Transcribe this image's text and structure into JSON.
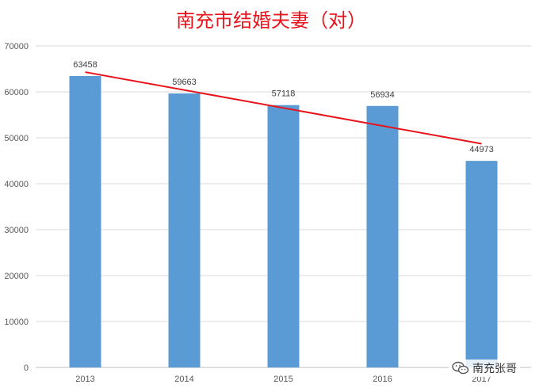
{
  "chart_data": {
    "type": "bar",
    "title": "南充市结婚夫妻（对）",
    "categories": [
      "2013",
      "2014",
      "2015",
      "2016",
      "2017"
    ],
    "values": [
      63458,
      59663,
      57118,
      56934,
      44973
    ],
    "ylim": [
      0,
      70000
    ],
    "yticks": [
      0,
      10000,
      20000,
      30000,
      40000,
      50000,
      60000,
      70000
    ],
    "xlabel": "",
    "ylabel": "",
    "grid": true,
    "trendline": {
      "type": "linear",
      "start": 64300,
      "end": 48700
    },
    "colors": {
      "bar": "#5b9bd5",
      "trend": "#e8141b",
      "title": "#e8141b"
    }
  },
  "watermark": {
    "icon": "wechat-icon",
    "text": "南充张哥"
  }
}
